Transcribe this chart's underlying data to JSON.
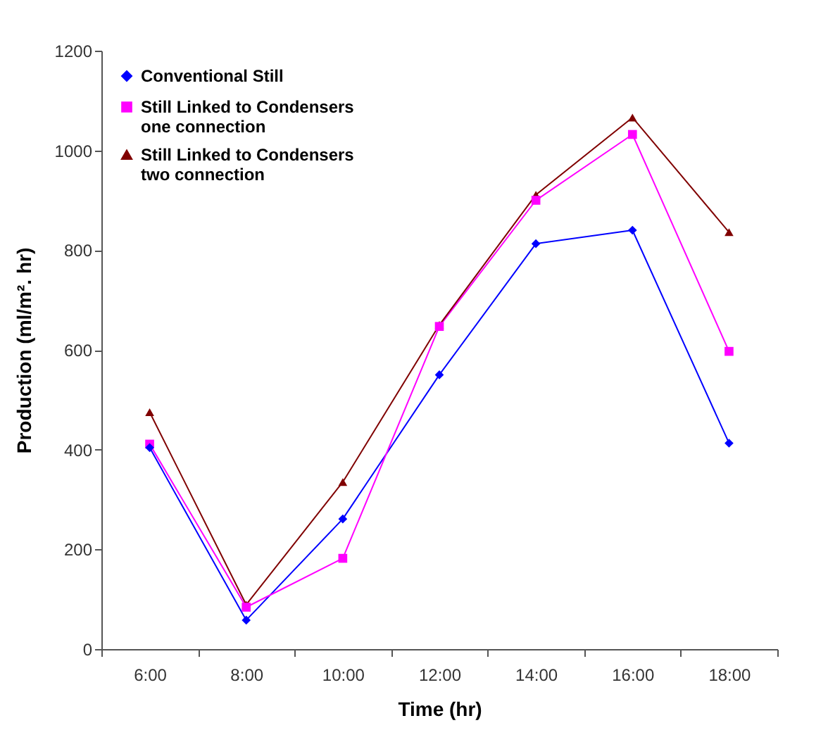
{
  "chart_data": {
    "type": "line",
    "xlabel": "Time (hr)",
    "ylabel": "Production (ml/m². hr)",
    "categories": [
      "6:00",
      "8:00",
      "10:00",
      "12:00",
      "14:00",
      "16:00",
      "18:00"
    ],
    "series": [
      {
        "name": "Conventional Still",
        "color": "#0000ff",
        "marker": "diamond",
        "values": [
          404,
          58,
          261,
          550,
          813,
          840,
          413
        ]
      },
      {
        "name": "Still Linked to Condensers one connection",
        "color": "#ff00ff",
        "marker": "square",
        "values": [
          411,
          84,
          182,
          647,
          900,
          1032,
          597
        ]
      },
      {
        "name": "Still Linked to Condensers two connection",
        "color": "#800000",
        "marker": "triangle",
        "values": [
          475,
          89,
          335,
          650,
          911,
          1066,
          836
        ]
      }
    ],
    "ylim": [
      0,
      1200
    ],
    "yticks": [
      0,
      200,
      400,
      600,
      800,
      1000,
      1200
    ],
    "grid": false,
    "legend": "top left",
    "line_style": "solid"
  }
}
